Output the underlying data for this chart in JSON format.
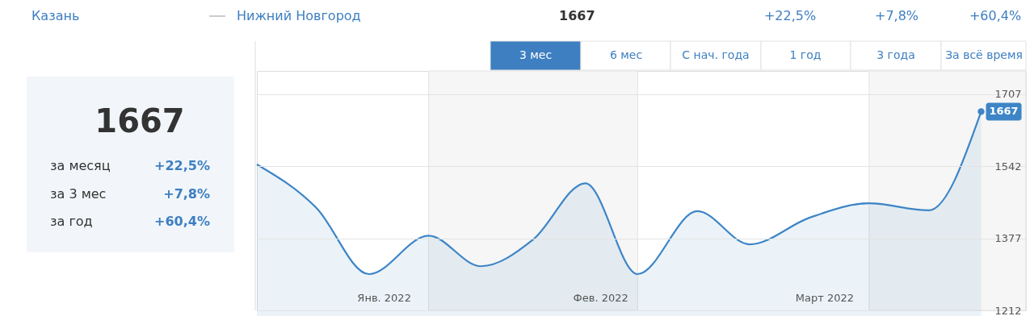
{
  "chart_data": {
    "type": "area",
    "x": [
      "2022-01-09",
      "2022-01-17",
      "2022-01-24",
      "2022-02-01",
      "2022-02-08",
      "2022-02-15",
      "2022-02-22",
      "2022-03-01",
      "2022-03-09",
      "2022-03-16",
      "2022-03-24",
      "2022-04-01",
      "2022-04-09",
      "2022-04-16"
    ],
    "series": [
      {
        "color": "#3d85c6",
        "values": [
          1546,
          1446,
          1295,
          1383,
          1313,
          1374,
          1503,
          1295,
          1439,
          1363,
          1424,
          1457,
          1441,
          1667
        ],
        "value_labels": [
          null,
          null,
          null,
          null,
          null,
          null,
          null,
          null,
          null,
          null,
          null,
          null,
          null,
          "1667"
        ]
      }
    ],
    "xlim": [
      "2022-01-09",
      "2022-04-22"
    ],
    "xticks": [
      {
        "value": "2022-01-26",
        "label": "Янв. 2022"
      },
      {
        "value": "2022-02-24",
        "label": "Фев. 2022"
      },
      {
        "value": "2022-03-26",
        "label": "Март 2022"
      }
    ],
    "ylim": [
      1212,
      1760
    ],
    "yticks": [
      1212,
      1377,
      1542,
      1707
    ],
    "grid": "y",
    "bands": [
      {
        "axis": "x",
        "from": "2022-02-01",
        "to": "2022-03-01",
        "label": null,
        "color": "#f6f6f6"
      },
      {
        "axis": "x",
        "from": "2022-04-01",
        "to": "2022-04-22",
        "label": null,
        "color": "#f6f6f6"
      }
    ],
    "annotations": [
      "Казань",
      "Нижний Новгород",
      "1667",
      "+22,5%",
      "+7,8%",
      "+60,4%",
      "3 мес",
      "6 мес",
      "С нач. года",
      "1 год",
      "3 года",
      "За всё время",
      "1667",
      "за месяц",
      "+22,5%",
      "за 3 мес",
      "+7,8%",
      "за год",
      "+60,4%"
    ]
  }
}
